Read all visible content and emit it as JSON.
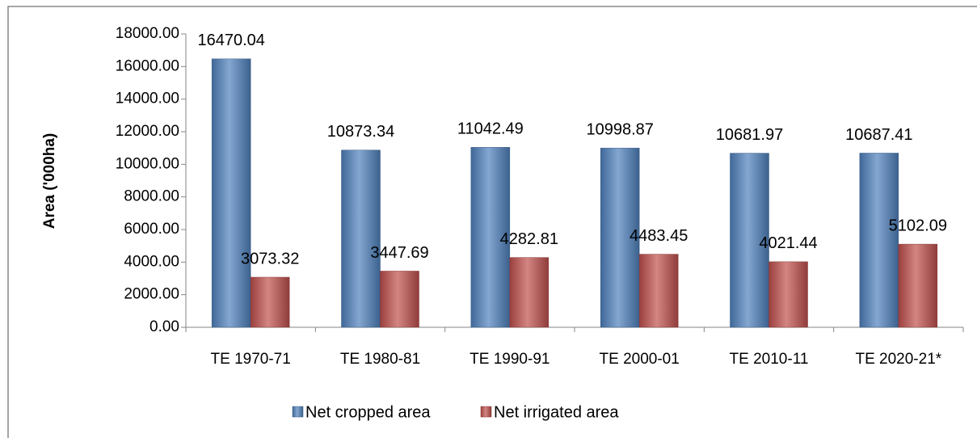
{
  "chart_data": {
    "type": "bar",
    "y_label": "Area ('000ha)",
    "categories": [
      "TE 1970-71",
      "TE 1980-81",
      "TE 1990-91",
      "TE 2000-01",
      "TE 2010-11",
      "TE 2020-21*"
    ],
    "series": [
      {
        "name": "Net cropped area",
        "color": "#4f81bd",
        "values": [
          16470.04,
          10873.34,
          11042.49,
          10998.87,
          10681.97,
          10687.41
        ]
      },
      {
        "name": "Net irrigated area",
        "color": "#c0504d",
        "values": [
          3073.32,
          3447.69,
          4282.81,
          4483.45,
          4021.44,
          5102.09
        ]
      }
    ],
    "ylim": [
      0,
      18000
    ],
    "yticks": [
      {
        "value": 0,
        "label": "0.00"
      },
      {
        "value": 2000,
        "label": "2000.00"
      },
      {
        "value": 4000,
        "label": "4000.00"
      },
      {
        "value": 6000,
        "label": "6000.00"
      },
      {
        "value": 8000,
        "label": "8000.00"
      },
      {
        "value": 10000,
        "label": "10000.00"
      },
      {
        "value": 12000,
        "label": "12000.00"
      },
      {
        "value": 14000,
        "label": "14000.00"
      },
      {
        "value": 16000,
        "label": "16000.00"
      },
      {
        "value": 18000,
        "label": "18000.00"
      }
    ],
    "grid": false,
    "legend": "bottom"
  }
}
